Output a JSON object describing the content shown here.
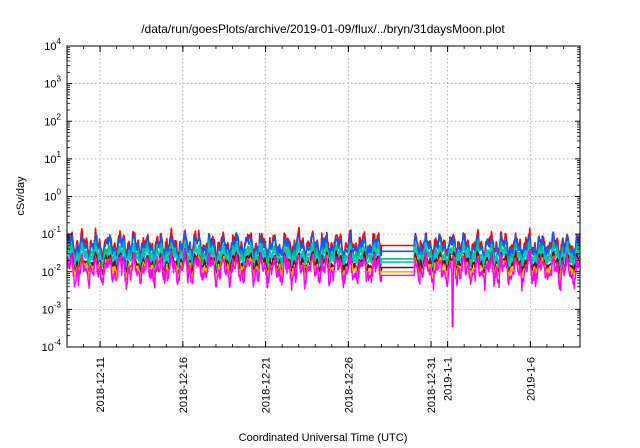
{
  "chart_data": {
    "type": "line",
    "title": "/data/run/goesPlots/archive/2019-01-09/flux/../bryn/31daysMoon.plot",
    "xlabel": "Coordinated Universal Time (UTC)",
    "ylabel": "cSv/day",
    "y_scale": "log",
    "ylim": [
      0.0001,
      10000
    ],
    "xlim": [
      "2018-12-09",
      "2019-01-09"
    ],
    "grid": true,
    "legend": "none",
    "y_ticks": [
      {
        "base": "10",
        "exp": "4"
      },
      {
        "base": "10",
        "exp": "3"
      },
      {
        "base": "10",
        "exp": "2"
      },
      {
        "base": "10",
        "exp": "1"
      },
      {
        "base": "10",
        "exp": "0"
      },
      {
        "base": "10",
        "exp": "-1"
      },
      {
        "base": "10",
        "exp": "-2"
      },
      {
        "base": "10",
        "exp": "-3"
      },
      {
        "base": "10",
        "exp": "-4"
      }
    ],
    "x_ticks": [
      {
        "label": "2018-12-11",
        "date": "2018-12-11"
      },
      {
        "label": "2018-12-16",
        "date": "2018-12-16"
      },
      {
        "label": "2018-12-21",
        "date": "2018-12-21"
      },
      {
        "label": "2018-12-26",
        "date": "2018-12-26"
      },
      {
        "label": "2018-12-31",
        "date": "2018-12-31"
      },
      {
        "label": "2019-1-1",
        "date": "2019-01-01"
      },
      {
        "label": "2019-1-6",
        "date": "2019-01-06"
      }
    ],
    "data_gap": [
      "2018-12-28",
      "2018-12-30"
    ],
    "series": [
      {
        "color": "#ff0000",
        "base": 0.055,
        "amp": 0.35,
        "gap_value": 0.05
      },
      {
        "color": "#0060ff",
        "base": 0.045,
        "amp": 0.35,
        "gap_value": 0.035
      },
      {
        "color": "#00c080",
        "base": 0.03,
        "amp": 0.3,
        "gap_value": 0.022
      },
      {
        "color": "#00c8c8",
        "base": 0.024,
        "amp": 0.3,
        "gap_value": 0.018
      },
      {
        "color": "#800000",
        "base": 0.017,
        "amp": 0.3,
        "gap_value": 0.013
      },
      {
        "color": "#ffb000",
        "base": 0.013,
        "amp": 0.3,
        "gap_value": 0.01
      },
      {
        "color": "#ff00ff",
        "base": 0.011,
        "amp": 0.45,
        "gap_value": 0.008,
        "dip": {
          "date": "2019-01-01",
          "value": 0.00035
        }
      }
    ]
  }
}
